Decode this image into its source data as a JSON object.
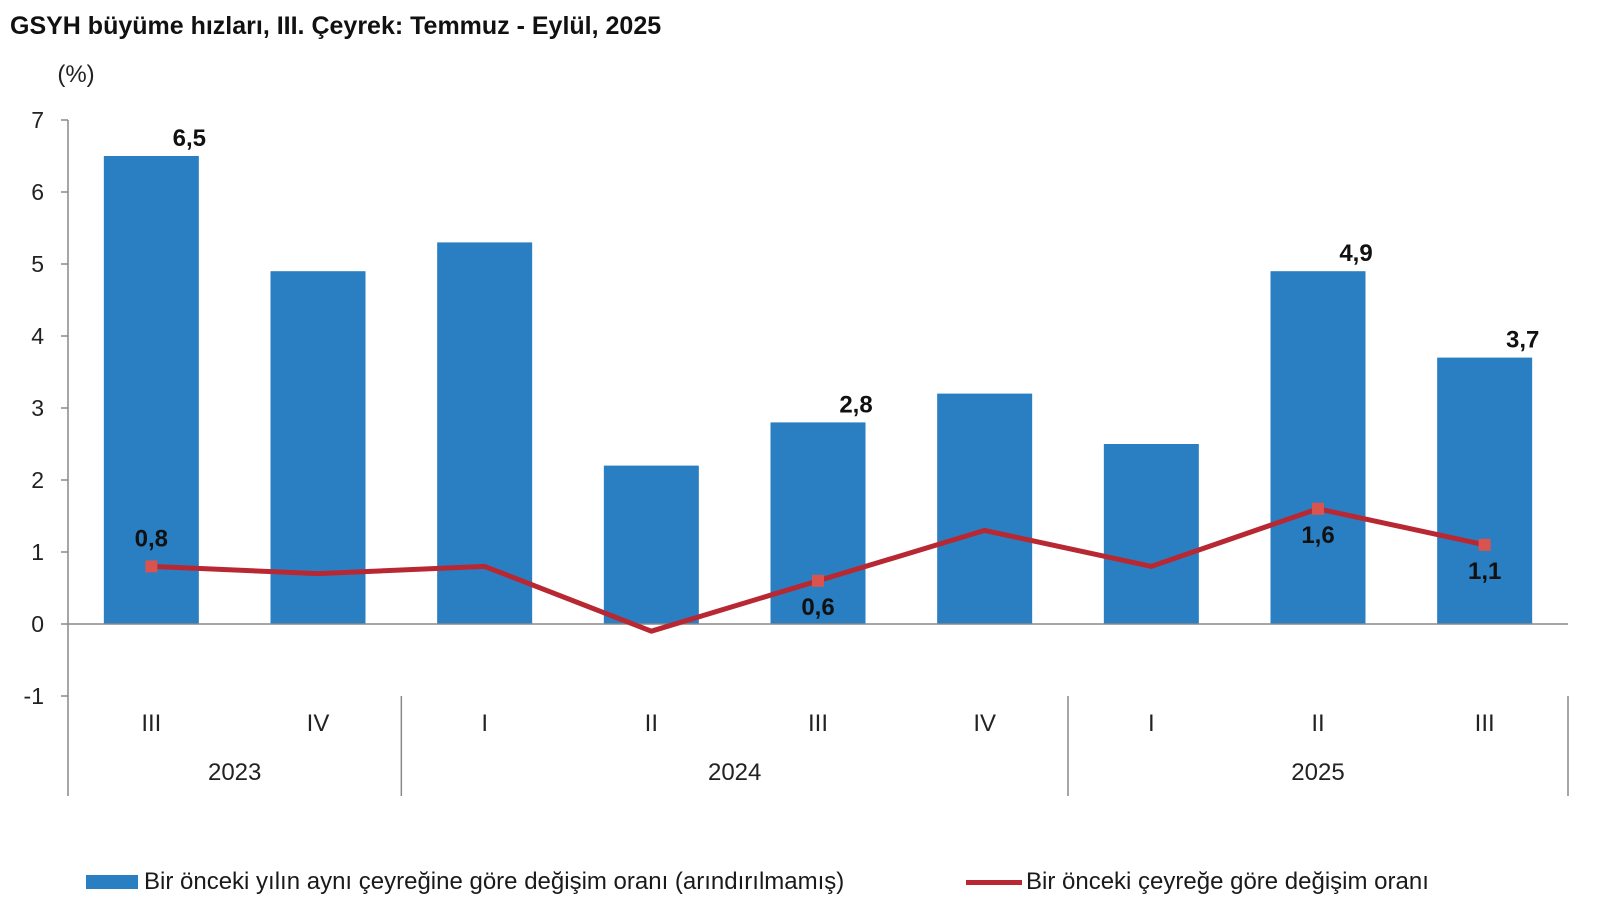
{
  "title": "GSYH büyüme hızları, III. Çeyrek: Temmuz - Eylül, 2025",
  "chart_data": {
    "type": "bar",
    "title": "GSYH büyüme hızları, III. Çeyrek: Temmuz - Eylül, 2025",
    "ylabel": "(%)",
    "xlabel": "",
    "ylim": [
      -1,
      7
    ],
    "yticks": [
      -1,
      0,
      1,
      2,
      3,
      4,
      5,
      6,
      7
    ],
    "categories": [
      "III",
      "IV",
      "I",
      "II",
      "III",
      "IV",
      "I",
      "II",
      "III"
    ],
    "year_groups": [
      {
        "label": "2023",
        "count": 2
      },
      {
        "label": "2024",
        "count": 4
      },
      {
        "label": "2025",
        "count": 3
      }
    ],
    "series": [
      {
        "name": "Bir önceki yılın aynı çeyreğine göre değişim oranı (arındırılmamış)",
        "type": "bar",
        "color": "#2A7FC2",
        "values": [
          6.5,
          4.9,
          5.3,
          2.2,
          2.8,
          3.2,
          2.5,
          4.9,
          3.7
        ],
        "data_labels": [
          "6,5",
          null,
          null,
          null,
          "2,8",
          null,
          null,
          "4,9",
          "3,7"
        ]
      },
      {
        "name": "Bir önceki çeyreğe göre değişim oranı",
        "type": "line",
        "color": "#B82832",
        "values": [
          0.8,
          0.7,
          0.8,
          -0.1,
          0.6,
          1.3,
          0.8,
          1.6,
          1.1
        ],
        "data_labels": [
          "0,8",
          null,
          null,
          null,
          "0,6",
          null,
          null,
          "1,6",
          "1,1"
        ],
        "label_position": [
          "above",
          null,
          null,
          null,
          "below",
          null,
          null,
          "below",
          "below"
        ]
      }
    ],
    "legend_position": "bottom",
    "grid": false
  }
}
